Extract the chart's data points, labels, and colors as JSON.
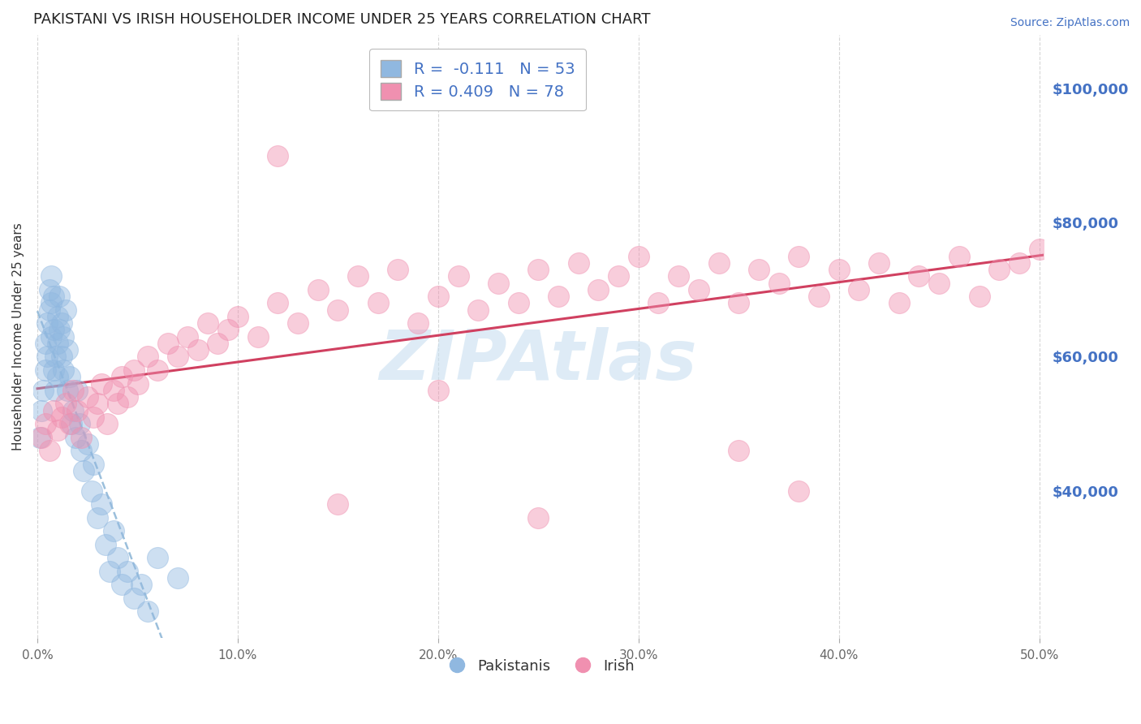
{
  "title": "PAKISTANI VS IRISH HOUSEHOLDER INCOME UNDER 25 YEARS CORRELATION CHART",
  "source": "Source: ZipAtlas.com",
  "ylabel": "Householder Income Under 25 years",
  "xlim_min": -0.002,
  "xlim_max": 0.502,
  "ylim_min": 18000,
  "ylim_max": 108000,
  "xtick_values": [
    0.0,
    0.1,
    0.2,
    0.3,
    0.4,
    0.5
  ],
  "xticklabels": [
    "0.0%",
    "10.0%",
    "20.0%",
    "30.0%",
    "40.0%",
    "50.0%"
  ],
  "ytick_values": [
    40000,
    60000,
    80000,
    100000
  ],
  "yticklabels": [
    "$40,000",
    "$60,000",
    "$80,000",
    "$100,000"
  ],
  "pakistani_color": "#90b8e0",
  "irish_color": "#f090b0",
  "irish_line_color": "#d04060",
  "pakistani_line_color": "#90b8d8",
  "legend_text_color": "#4472c4",
  "title_color": "#222222",
  "right_axis_color": "#4472c4",
  "grid_color": "#cccccc",
  "watermark_text": "ZIPAtlas",
  "watermark_color": "#c8dff0",
  "background_color": "#ffffff",
  "legend1_label": "R =  -0.111   N = 53",
  "legend2_label": "R = 0.409   N = 78",
  "bottom_legend1": "Pakistanis",
  "bottom_legend2": "Irish",
  "pak_x": [
    0.001,
    0.002,
    0.003,
    0.004,
    0.004,
    0.005,
    0.005,
    0.006,
    0.006,
    0.007,
    0.007,
    0.007,
    0.008,
    0.008,
    0.008,
    0.009,
    0.009,
    0.01,
    0.01,
    0.01,
    0.011,
    0.011,
    0.012,
    0.012,
    0.013,
    0.013,
    0.014,
    0.015,
    0.015,
    0.016,
    0.017,
    0.018,
    0.019,
    0.02,
    0.021,
    0.022,
    0.023,
    0.025,
    0.027,
    0.028,
    0.03,
    0.032,
    0.034,
    0.036,
    0.038,
    0.04,
    0.042,
    0.045,
    0.048,
    0.052,
    0.055,
    0.06,
    0.07
  ],
  "pak_y": [
    48000,
    52000,
    55000,
    58000,
    62000,
    60000,
    65000,
    67000,
    70000,
    63000,
    68000,
    72000,
    58000,
    64000,
    69000,
    55000,
    60000,
    57000,
    62000,
    66000,
    64000,
    69000,
    60000,
    65000,
    58000,
    63000,
    67000,
    55000,
    61000,
    57000,
    50000,
    52000,
    48000,
    55000,
    50000,
    46000,
    43000,
    47000,
    40000,
    44000,
    36000,
    38000,
    32000,
    28000,
    34000,
    30000,
    26000,
    28000,
    24000,
    26000,
    22000,
    30000,
    27000
  ],
  "irish_x": [
    0.002,
    0.004,
    0.006,
    0.008,
    0.01,
    0.012,
    0.014,
    0.016,
    0.018,
    0.02,
    0.022,
    0.025,
    0.028,
    0.03,
    0.032,
    0.035,
    0.038,
    0.04,
    0.042,
    0.045,
    0.048,
    0.05,
    0.055,
    0.06,
    0.065,
    0.07,
    0.075,
    0.08,
    0.085,
    0.09,
    0.095,
    0.1,
    0.11,
    0.12,
    0.13,
    0.14,
    0.15,
    0.16,
    0.17,
    0.18,
    0.19,
    0.2,
    0.21,
    0.22,
    0.23,
    0.24,
    0.25,
    0.26,
    0.27,
    0.28,
    0.29,
    0.3,
    0.31,
    0.32,
    0.33,
    0.34,
    0.35,
    0.36,
    0.37,
    0.38,
    0.39,
    0.4,
    0.41,
    0.42,
    0.43,
    0.44,
    0.45,
    0.46,
    0.47,
    0.48,
    0.49,
    0.5,
    0.12,
    0.2,
    0.35,
    0.38,
    0.15,
    0.25
  ],
  "irish_y": [
    48000,
    50000,
    46000,
    52000,
    49000,
    51000,
    53000,
    50000,
    55000,
    52000,
    48000,
    54000,
    51000,
    53000,
    56000,
    50000,
    55000,
    53000,
    57000,
    54000,
    58000,
    56000,
    60000,
    58000,
    62000,
    60000,
    63000,
    61000,
    65000,
    62000,
    64000,
    66000,
    63000,
    68000,
    65000,
    70000,
    67000,
    72000,
    68000,
    73000,
    65000,
    69000,
    72000,
    67000,
    71000,
    68000,
    73000,
    69000,
    74000,
    70000,
    72000,
    75000,
    68000,
    72000,
    70000,
    74000,
    68000,
    73000,
    71000,
    75000,
    69000,
    73000,
    70000,
    74000,
    68000,
    72000,
    71000,
    75000,
    69000,
    73000,
    74000,
    76000,
    90000,
    55000,
    46000,
    40000,
    38000,
    36000
  ]
}
